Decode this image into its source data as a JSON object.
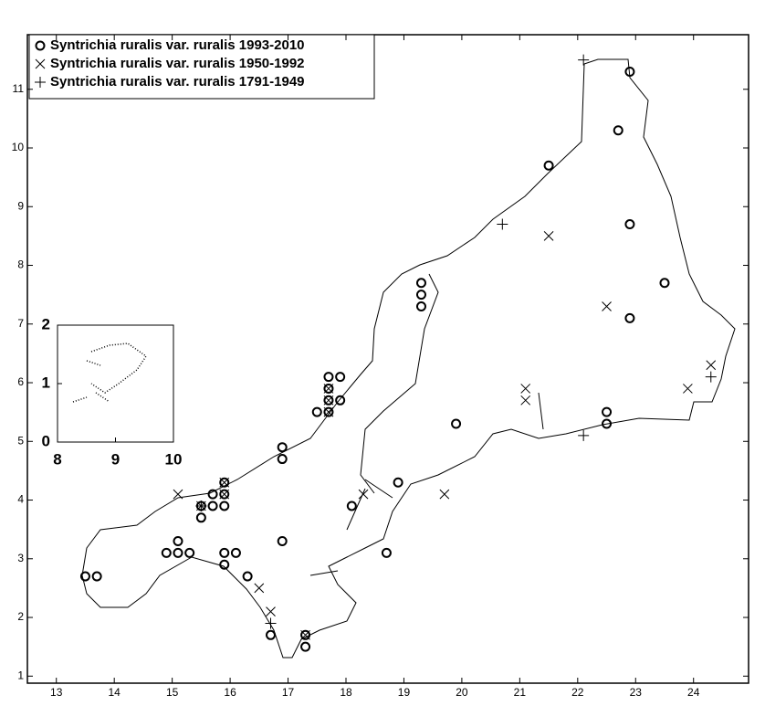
{
  "chart_data": {
    "type": "scatter",
    "xlim": [
      12.5,
      24.95
    ],
    "ylim": [
      0.88,
      11.93
    ],
    "xticks": [
      13,
      14,
      15,
      16,
      17,
      18,
      19,
      20,
      21,
      22,
      23,
      24
    ],
    "yticks": [
      1,
      2,
      3,
      4,
      5,
      6,
      7,
      8,
      9,
      10,
      11
    ],
    "legend": "upper left",
    "series": [
      {
        "name": "Syntrichia ruralis var. ruralis 1993-2010",
        "color": "#000000",
        "marker": "circle",
        "x": [
          13.5,
          13.7,
          14.9,
          15.1,
          15.1,
          15.3,
          15.5,
          15.5,
          15.7,
          15.7,
          15.9,
          15.9,
          15.9,
          15.9,
          15.9,
          16.1,
          16.3,
          16.7,
          16.9,
          16.9,
          16.9,
          17.3,
          17.3,
          17.5,
          17.7,
          17.7,
          17.7,
          17.7,
          17.9,
          17.9,
          18.1,
          18.7,
          18.9,
          19.3,
          19.3,
          19.3,
          19.9,
          21.5,
          22.5,
          22.5,
          22.7,
          22.9,
          22.9,
          22.9,
          23.5
        ],
        "values": [
          2.7,
          2.7,
          3.1,
          3.1,
          3.3,
          3.1,
          3.7,
          3.9,
          3.9,
          4.1,
          3.9,
          4.1,
          4.3,
          3.1,
          2.9,
          3.1,
          2.7,
          1.7,
          3.3,
          4.7,
          4.9,
          1.7,
          1.5,
          5.5,
          5.5,
          5.7,
          5.9,
          6.1,
          5.7,
          6.1,
          3.9,
          3.1,
          4.3,
          7.7,
          7.5,
          7.3,
          5.3,
          9.7,
          5.5,
          5.3,
          10.3,
          11.3,
          8.7,
          7.1,
          7.7
        ]
      },
      {
        "name": "Syntrichia ruralis var. ruralis 1950-1992",
        "color": "#000000",
        "marker": "cross",
        "x": [
          15.1,
          15.5,
          15.9,
          15.9,
          16.5,
          16.7,
          17.3,
          17.7,
          17.7,
          17.7,
          18.3,
          19.7,
          21.1,
          21.1,
          21.5,
          22.5,
          23.9,
          24.3
        ],
        "values": [
          4.1,
          3.9,
          4.1,
          4.3,
          2.5,
          2.1,
          1.7,
          5.5,
          5.7,
          5.9,
          4.1,
          4.1,
          5.9,
          5.7,
          8.5,
          7.3,
          5.9,
          6.3
        ]
      },
      {
        "name": "Syntrichia ruralis var. ruralis 1791-1949",
        "color": "#000000",
        "marker": "plus",
        "x": [
          15.5,
          16.7,
          20.7,
          22.1,
          22.1,
          24.3
        ],
        "values": [
          3.9,
          1.9,
          8.7,
          11.5,
          5.1,
          6.1
        ]
      }
    ],
    "inset": {
      "xlim": [
        8,
        10
      ],
      "ylim": [
        0,
        2
      ],
      "xticks": [
        8,
        9,
        10
      ],
      "yticks": [
        0,
        1,
        2
      ]
    }
  }
}
